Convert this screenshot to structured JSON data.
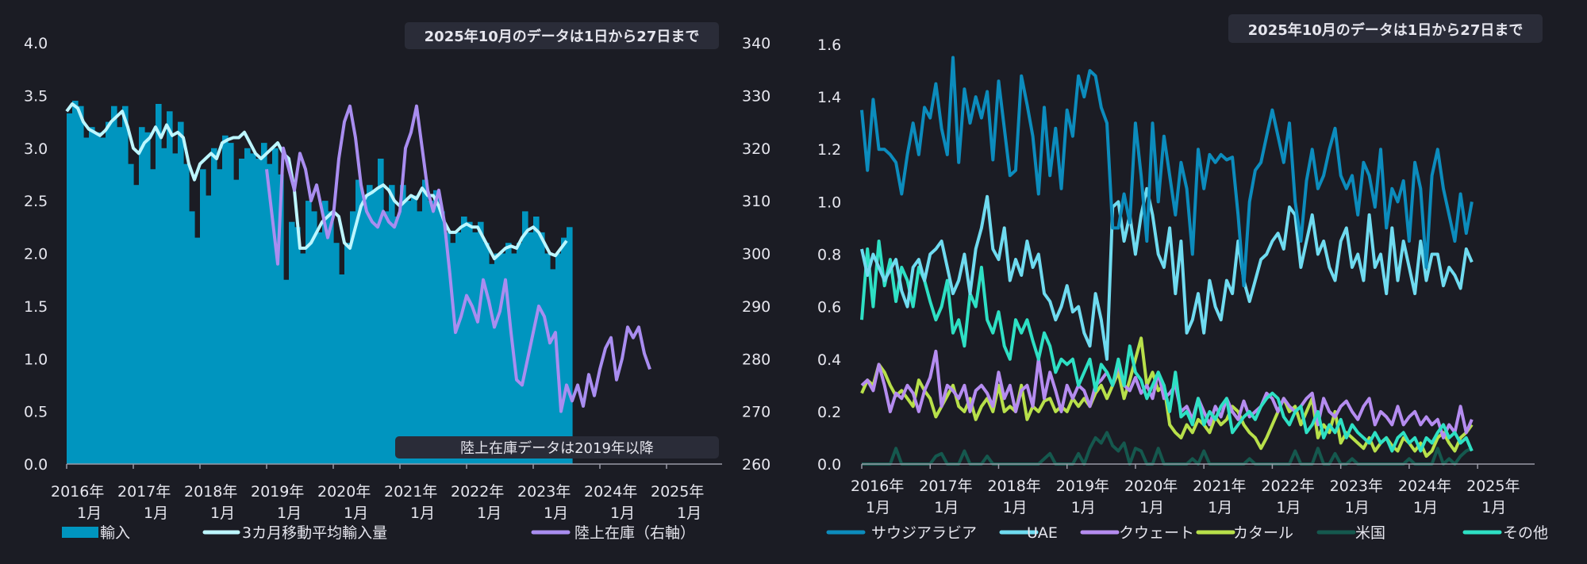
{
  "colors": {
    "background": "#1b1c24",
    "text": "#e6e6ee",
    "banner_bg": "#2a2c38",
    "imports_fill": "#0095bf",
    "ma_line": "#bdf6ff",
    "inventory_line": "#a98df0",
    "saudi": "#0c8cbd",
    "uae": "#6fdbf0",
    "kuwait": "#b58cf0",
    "qatar": "#b8e04a",
    "us": "#15584e",
    "others": "#2ee0c4"
  },
  "chart_data": [
    {
      "id": "left",
      "type": "bar",
      "banner_note": "2025年10月のデータは1日から27日まで",
      "bottom_note": "陸上在庫データは2019年以降",
      "x_tick_labels": [
        [
          "2016年",
          "1月"
        ],
        [
          "2017年",
          "1月"
        ],
        [
          "2018年",
          "1月"
        ],
        [
          "2019年",
          "1月"
        ],
        [
          "2020年",
          "1月"
        ],
        [
          "2021年",
          "1月"
        ],
        [
          "2022年",
          "1月"
        ],
        [
          "2023年",
          "1月"
        ],
        [
          "2024年",
          "1月"
        ],
        [
          "2025年",
          "1月"
        ]
      ],
      "ylim": [
        0,
        4
      ],
      "y_ticks": [
        "0.0",
        "0.5",
        "1.0",
        "1.5",
        "2.0",
        "2.5",
        "3.0",
        "3.5",
        "4.0"
      ],
      "y2lim": [
        260,
        340
      ],
      "y2_ticks": [
        "260",
        "270",
        "280",
        "290",
        "300",
        "310",
        "320",
        "330",
        "340"
      ],
      "legend": {
        "imports": "輸入",
        "ma": "3カ月移動平均輸入量",
        "inventory": "陸上在庫（右軸）"
      },
      "series": [
        {
          "name": "輸入",
          "kind": "bar",
          "start": "2016-01",
          "values": [
            3.33,
            3.45,
            3.4,
            3.1,
            3.2,
            3.15,
            3.1,
            3.25,
            3.4,
            3.2,
            3.4,
            2.85,
            2.65,
            3.2,
            3.15,
            2.8,
            3.42,
            3.0,
            3.35,
            2.95,
            3.25,
            2.85,
            2.4,
            2.15,
            2.8,
            2.55,
            3.0,
            2.8,
            3.12,
            3.05,
            2.7,
            2.9,
            3.0,
            2.95,
            2.9,
            3.05,
            2.85,
            3.0,
            2.75,
            1.75,
            2.3,
            2.25,
            2.0,
            2.5,
            2.4,
            2.2,
            2.5,
            2.4,
            2.1,
            1.8,
            2.1,
            2.4,
            2.7,
            2.55,
            2.65,
            2.6,
            2.9,
            2.4,
            2.65,
            2.35,
            2.65,
            2.5,
            2.55,
            2.4,
            2.7,
            2.5,
            2.6,
            2.4,
            2.2,
            2.1,
            2.2,
            2.35,
            2.3,
            2.2,
            2.3,
            2.1,
            1.9,
            2.0,
            2.0,
            2.1,
            2.0,
            2.1,
            2.4,
            2.2,
            2.35,
            2.2,
            2.0,
            1.85,
            2.0,
            2.15,
            2.25
          ]
        },
        {
          "name": "3カ月移動平均輸入量",
          "kind": "line",
          "start": "2016-01",
          "values": [
            3.35,
            3.42,
            3.38,
            3.25,
            3.18,
            3.15,
            3.12,
            3.17,
            3.25,
            3.3,
            3.35,
            3.2,
            3.0,
            2.95,
            3.05,
            3.1,
            3.2,
            3.1,
            3.22,
            3.12,
            3.15,
            3.1,
            2.85,
            2.7,
            2.85,
            2.9,
            2.95,
            2.9,
            3.05,
            3.08,
            3.1,
            3.1,
            3.15,
            3.05,
            2.95,
            2.9,
            2.95,
            3.0,
            3.05,
            2.95,
            2.9,
            2.6,
            2.05,
            2.05,
            2.1,
            2.2,
            2.3,
            2.35,
            2.4,
            2.35,
            2.1,
            2.05,
            2.25,
            2.45,
            2.55,
            2.58,
            2.62,
            2.65,
            2.6,
            2.5,
            2.45,
            2.5,
            2.55,
            2.52,
            2.62,
            2.55,
            2.55,
            2.45,
            2.3,
            2.2,
            2.2,
            2.25,
            2.28,
            2.25,
            2.25,
            2.15,
            2.05,
            1.95,
            2.0,
            2.05,
            2.07,
            2.05,
            2.15,
            2.22,
            2.25,
            2.2,
            2.1,
            2.0,
            1.98,
            2.05,
            2.12
          ]
        },
        {
          "name": "陸上在庫",
          "kind": "line",
          "axis": "right",
          "start": "2019-01",
          "values": [
            316,
            307,
            298,
            320,
            316,
            312,
            319,
            316,
            310,
            313,
            308,
            303,
            307,
            318,
            325,
            328,
            322,
            313,
            308,
            306,
            305,
            308,
            306,
            305,
            308,
            320,
            323,
            328,
            320,
            312,
            308,
            312,
            306,
            296,
            285,
            288,
            292,
            290,
            287,
            295,
            291,
            286,
            289,
            295,
            285,
            276,
            275,
            280,
            285,
            290,
            288,
            283,
            285,
            270,
            275,
            272,
            275,
            271,
            277,
            273,
            278,
            282,
            284,
            276,
            280,
            286,
            284,
            286,
            281,
            278
          ]
        }
      ]
    },
    {
      "id": "right",
      "type": "line",
      "banner_note": "2025年10月のデータは1日から27日まで",
      "x_tick_labels": [
        [
          "2016年",
          "1月"
        ],
        [
          "2017年",
          "1月"
        ],
        [
          "2018年",
          "1月"
        ],
        [
          "2019年",
          "1月"
        ],
        [
          "2020年",
          "1月"
        ],
        [
          "2021年",
          "1月"
        ],
        [
          "2022年",
          "1月"
        ],
        [
          "2023年",
          "1月"
        ],
        [
          "2024年",
          "1月"
        ],
        [
          "2025年",
          "1月"
        ]
      ],
      "ylim": [
        0,
        1.6
      ],
      "y_ticks": [
        "0.0",
        "0.2",
        "0.4",
        "0.6",
        "0.8",
        "1.0",
        "1.2",
        "1.4",
        "1.6"
      ],
      "series": [
        {
          "name": "サウジアラビア",
          "start": "2016-01",
          "values": [
            1.35,
            1.12,
            1.39,
            1.2,
            1.2,
            1.18,
            1.15,
            1.03,
            1.18,
            1.3,
            1.18,
            1.36,
            1.32,
            1.45,
            1.28,
            1.18,
            1.55,
            1.15,
            1.43,
            1.3,
            1.4,
            1.32,
            1.42,
            1.16,
            1.46,
            1.28,
            1.1,
            1.12,
            1.48,
            1.37,
            1.25,
            1.03,
            1.36,
            1.1,
            1.28,
            1.05,
            1.35,
            1.25,
            1.48,
            1.4,
            1.5,
            1.48,
            1.36,
            1.3,
            0.9,
            0.9,
            1.03,
            0.92,
            1.3,
            1.1,
            0.85,
            1.3,
            1.0,
            1.25,
            1.1,
            0.95,
            1.15,
            1.05,
            0.8,
            1.2,
            1.05,
            1.18,
            1.15,
            1.18,
            1.16,
            1.17,
            0.95,
            0.68,
            1.0,
            1.12,
            1.15,
            1.25,
            1.35,
            1.25,
            1.15,
            1.3,
            1.0,
            0.85,
            1.08,
            1.2,
            1.05,
            1.1,
            1.2,
            1.28,
            1.1,
            1.05,
            1.1,
            0.95,
            1.15,
            1.1,
            0.98,
            1.2,
            0.9,
            1.05,
            1.0,
            1.08,
            0.85,
            1.15,
            1.05,
            0.75,
            1.1,
            1.2,
            1.05,
            0.95,
            0.85,
            1.03,
            0.88,
            1.0
          ]
        },
        {
          "name": "UAE",
          "start": "2016-01",
          "values": [
            0.82,
            0.72,
            0.8,
            0.75,
            0.7,
            0.74,
            0.78,
            0.66,
            0.6,
            0.75,
            0.78,
            0.7,
            0.8,
            0.82,
            0.85,
            0.75,
            0.65,
            0.7,
            0.8,
            0.65,
            0.82,
            0.9,
            1.02,
            0.82,
            0.78,
            0.9,
            0.7,
            0.78,
            0.72,
            0.85,
            0.75,
            0.8,
            0.65,
            0.62,
            0.55,
            0.6,
            0.68,
            0.58,
            0.6,
            0.5,
            0.45,
            0.65,
            0.55,
            0.4,
            0.98,
            1.0,
            0.85,
            0.95,
            0.8,
            0.95,
            1.05,
            0.95,
            0.8,
            0.75,
            0.9,
            0.65,
            0.85,
            0.5,
            0.55,
            0.65,
            0.5,
            0.7,
            0.6,
            0.55,
            0.7,
            0.65,
            0.85,
            0.7,
            0.62,
            0.7,
            0.78,
            0.8,
            0.85,
            0.88,
            0.82,
            0.98,
            0.95,
            0.75,
            0.85,
            0.95,
            0.8,
            0.85,
            0.75,
            0.7,
            0.85,
            0.9,
            0.75,
            0.8,
            0.7,
            0.95,
            0.75,
            0.8,
            0.65,
            0.9,
            0.7,
            0.85,
            0.75,
            0.65,
            0.85,
            0.7,
            0.8,
            0.8,
            0.68,
            0.75,
            0.72,
            0.67,
            0.82,
            0.77
          ]
        },
        {
          "name": "クウェート",
          "start": "2016-01",
          "values": [
            0.3,
            0.32,
            0.28,
            0.38,
            0.3,
            0.2,
            0.27,
            0.25,
            0.3,
            0.27,
            0.2,
            0.28,
            0.33,
            0.43,
            0.22,
            0.3,
            0.28,
            0.25,
            0.3,
            0.2,
            0.28,
            0.3,
            0.27,
            0.22,
            0.35,
            0.25,
            0.3,
            0.2,
            0.28,
            0.3,
            0.22,
            0.4,
            0.25,
            0.35,
            0.28,
            0.2,
            0.3,
            0.25,
            0.3,
            0.28,
            0.22,
            0.3,
            0.32,
            0.35,
            0.3,
            0.38,
            0.3,
            0.28,
            0.33,
            0.27,
            0.3,
            0.25,
            0.35,
            0.25,
            0.27,
            0.3,
            0.2,
            0.22,
            0.17,
            0.25,
            0.2,
            0.15,
            0.22,
            0.18,
            0.25,
            0.2,
            0.17,
            0.24,
            0.18,
            0.2,
            0.22,
            0.27,
            0.25,
            0.2,
            0.25,
            0.22,
            0.2,
            0.22,
            0.25,
            0.27,
            0.15,
            0.25,
            0.2,
            0.18,
            0.22,
            0.24,
            0.2,
            0.17,
            0.22,
            0.25,
            0.15,
            0.2,
            0.18,
            0.15,
            0.22,
            0.15,
            0.18,
            0.2,
            0.15,
            0.18,
            0.15,
            0.17,
            0.1,
            0.15,
            0.12,
            0.22,
            0.12,
            0.17
          ]
        },
        {
          "name": "カタール",
          "start": "2016-01",
          "values": [
            0.27,
            0.32,
            0.3,
            0.38,
            0.35,
            0.3,
            0.26,
            0.28,
            0.25,
            0.22,
            0.32,
            0.28,
            0.25,
            0.18,
            0.22,
            0.26,
            0.3,
            0.22,
            0.2,
            0.25,
            0.17,
            0.22,
            0.25,
            0.2,
            0.3,
            0.2,
            0.22,
            0.2,
            0.3,
            0.17,
            0.22,
            0.2,
            0.24,
            0.25,
            0.2,
            0.22,
            0.2,
            0.25,
            0.22,
            0.25,
            0.22,
            0.27,
            0.3,
            0.25,
            0.3,
            0.35,
            0.25,
            0.32,
            0.4,
            0.48,
            0.3,
            0.35,
            0.28,
            0.3,
            0.15,
            0.12,
            0.1,
            0.15,
            0.12,
            0.17,
            0.15,
            0.12,
            0.18,
            0.15,
            0.17,
            0.22,
            0.2,
            0.15,
            0.12,
            0.1,
            0.06,
            0.1,
            0.15,
            0.2,
            0.25,
            0.2,
            0.22,
            0.15,
            0.2,
            0.25,
            0.1,
            0.15,
            0.12,
            0.2,
            0.08,
            0.12,
            0.1,
            0.08,
            0.06,
            0.1,
            0.05,
            0.08,
            0.1,
            0.07,
            0.05,
            0.1,
            0.08,
            0.05,
            0.08,
            0.03,
            0.05,
            0.1,
            0.12,
            0.08,
            0.05,
            0.1,
            0.12,
            0.15
          ]
        },
        {
          "name": "米国",
          "start": "2016-01",
          "values": [
            0.0,
            0.0,
            0.0,
            0.0,
            0.0,
            0.0,
            0.06,
            0.0,
            0.0,
            0.0,
            0.0,
            0.0,
            0.0,
            0.03,
            0.04,
            0.0,
            0.0,
            0.0,
            0.05,
            0.0,
            0.0,
            0.0,
            0.03,
            0.0,
            0.0,
            0.0,
            0.0,
            0.0,
            0.0,
            0.0,
            0.0,
            0.0,
            0.02,
            0.04,
            0.0,
            0.0,
            0.0,
            0.0,
            0.04,
            0.0,
            0.06,
            0.1,
            0.08,
            0.12,
            0.07,
            0.05,
            0.08,
            0.0,
            0.06,
            0.05,
            0.0,
            0.0,
            0.06,
            0.0,
            0.0,
            0.0,
            0.0,
            0.0,
            0.02,
            0.0,
            0.05,
            0.0,
            0.0,
            0.0,
            0.0,
            0.0,
            0.0,
            0.0,
            0.02,
            0.0,
            0.0,
            0.0,
            0.0,
            0.0,
            0.0,
            0.0,
            0.05,
            0.0,
            0.0,
            0.0,
            0.06,
            0.0,
            0.0,
            0.04,
            0.0,
            0.0,
            0.02,
            0.0,
            0.0,
            0.0,
            0.0,
            0.0,
            0.0,
            0.0,
            0.0,
            0.0,
            0.02,
            0.0,
            0.0,
            0.0,
            0.0,
            0.06,
            0.0,
            0.02,
            0.0,
            0.03,
            0.05,
            0.06
          ]
        },
        {
          "name": "その他",
          "start": "2016-01",
          "values": [
            0.55,
            0.82,
            0.6,
            0.85,
            0.68,
            0.78,
            0.62,
            0.75,
            0.7,
            0.6,
            0.75,
            0.7,
            0.62,
            0.55,
            0.6,
            0.7,
            0.5,
            0.55,
            0.45,
            0.65,
            0.6,
            0.75,
            0.55,
            0.5,
            0.58,
            0.45,
            0.4,
            0.55,
            0.5,
            0.55,
            0.47,
            0.4,
            0.5,
            0.45,
            0.35,
            0.4,
            0.38,
            0.4,
            0.3,
            0.35,
            0.4,
            0.28,
            0.38,
            0.35,
            0.3,
            0.4,
            0.3,
            0.45,
            0.35,
            0.32,
            0.25,
            0.3,
            0.35,
            0.3,
            0.2,
            0.35,
            0.18,
            0.2,
            0.15,
            0.25,
            0.15,
            0.2,
            0.17,
            0.22,
            0.25,
            0.12,
            0.15,
            0.18,
            0.2,
            0.17,
            0.22,
            0.25,
            0.27,
            0.25,
            0.18,
            0.15,
            0.2,
            0.22,
            0.12,
            0.15,
            0.2,
            0.1,
            0.15,
            0.12,
            0.17,
            0.1,
            0.15,
            0.12,
            0.1,
            0.08,
            0.12,
            0.08,
            0.1,
            0.05,
            0.1,
            0.12,
            0.08,
            0.1,
            0.05,
            0.1,
            0.08,
            0.12,
            0.15,
            0.1,
            0.12,
            0.08,
            0.1,
            0.05
          ]
        }
      ]
    }
  ]
}
